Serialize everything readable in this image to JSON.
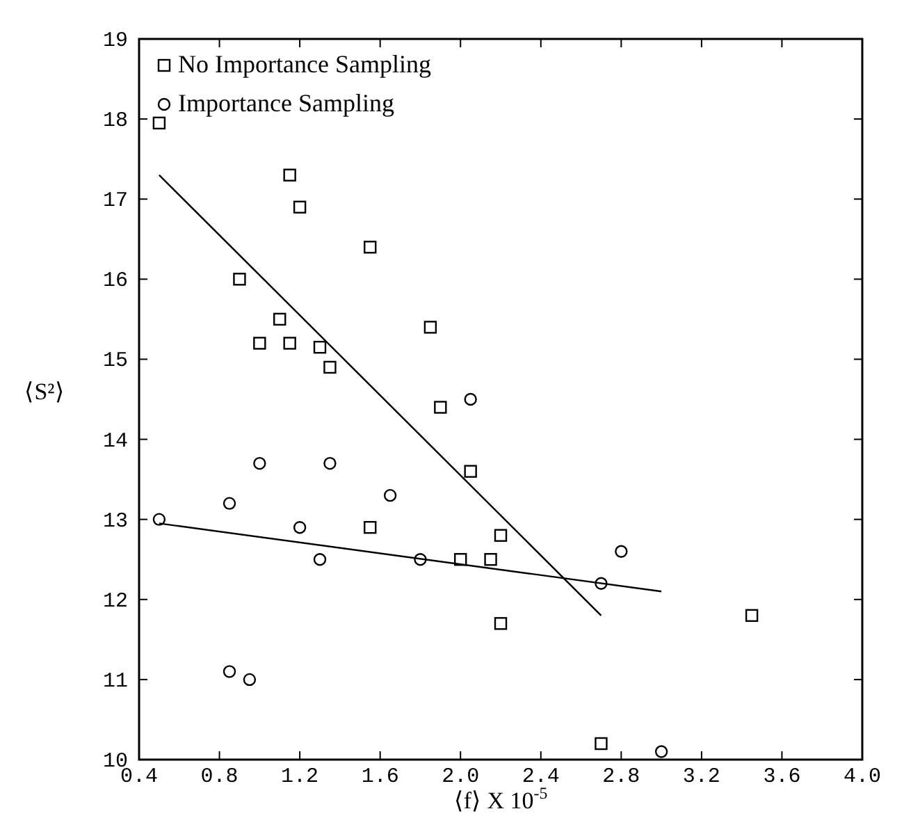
{
  "chart_data": {
    "type": "scatter",
    "xlabel": "⟨f⟩ X 10$^{-5}$",
    "ylabel": "⟨S²⟩",
    "xlim": [
      0.4,
      4.0
    ],
    "ylim": [
      10,
      19
    ],
    "xticks": [
      {
        "value": 0.4,
        "label": "0.4"
      },
      {
        "value": 0.8,
        "label": "0.8"
      },
      {
        "value": 1.2,
        "label": "1.2"
      },
      {
        "value": 1.6,
        "label": "1.6"
      },
      {
        "value": 2.0,
        "label": "2.0"
      },
      {
        "value": 2.4,
        "label": "2.4"
      },
      {
        "value": 2.8,
        "label": "2.8"
      },
      {
        "value": 3.2,
        "label": "3.2"
      },
      {
        "value": 3.6,
        "label": "3.6"
      },
      {
        "value": 4.0,
        "label": "4.0"
      }
    ],
    "yticks": [
      10,
      11,
      12,
      13,
      14,
      15,
      16,
      17,
      18,
      19
    ],
    "grid": false,
    "legend": "top left",
    "series": [
      {
        "name": "No Importance Sampling",
        "marker": "square",
        "color": "#000000",
        "x": [
          0.5,
          1.15,
          1.2,
          1.55,
          0.9,
          1.1,
          1.0,
          1.15,
          1.3,
          1.35,
          1.85,
          1.9,
          2.05,
          2.2,
          1.55,
          2.0,
          2.15,
          2.2,
          2.7,
          3.45
        ],
        "values": [
          17.95,
          17.3,
          16.9,
          16.4,
          16.0,
          15.5,
          15.2,
          15.2,
          15.15,
          14.9,
          15.4,
          14.4,
          13.6,
          12.8,
          12.9,
          12.5,
          12.5,
          11.7,
          10.2,
          11.8
        ]
      },
      {
        "name": "Importance Sampling",
        "marker": "circle",
        "color": "#000000",
        "x": [
          0.5,
          0.85,
          1.0,
          1.35,
          1.65,
          1.2,
          1.3,
          1.8,
          2.05,
          2.7,
          2.8,
          0.85,
          0.95,
          3.0
        ],
        "values": [
          13.0,
          13.2,
          13.7,
          13.7,
          13.3,
          12.9,
          12.5,
          12.5,
          14.5,
          12.2,
          12.6,
          11.1,
          11.0,
          10.1
        ]
      },
      {
        "type": "line",
        "marker": "none",
        "line_style": "solid",
        "color": "#000000",
        "x": [
          0.5,
          2.7
        ],
        "values": [
          17.3,
          11.8
        ]
      },
      {
        "type": "line",
        "marker": "none",
        "line_style": "solid",
        "color": "#000000",
        "x": [
          0.5,
          3.0
        ],
        "values": [
          12.95,
          12.1
        ]
      }
    ]
  }
}
